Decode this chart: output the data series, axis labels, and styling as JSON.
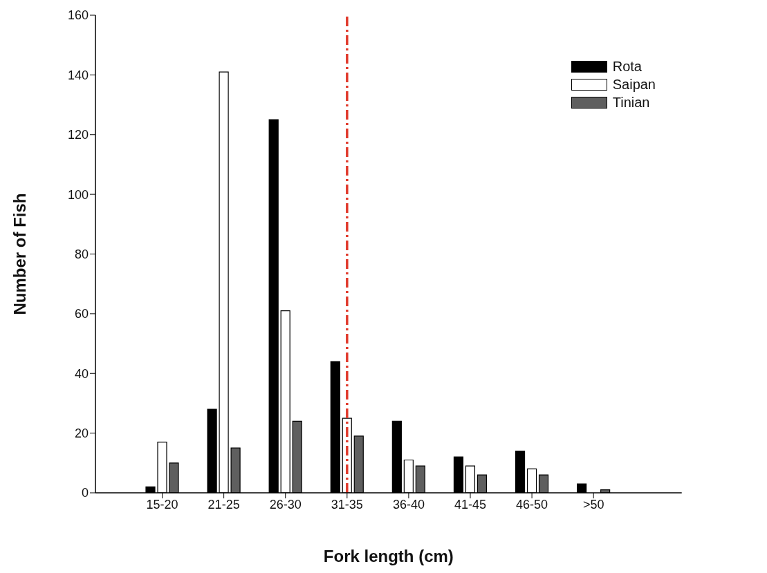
{
  "chart_data": {
    "type": "bar",
    "xlabel": "Fork length (cm)",
    "ylabel": "Number of Fish",
    "categories": [
      "15-20",
      "21-25",
      "26-30",
      "31-35",
      "36-40",
      "41-45",
      "46-50",
      ">50"
    ],
    "series": [
      {
        "name": "Rota",
        "color": "#000000",
        "values": [
          2,
          28,
          125,
          44,
          24,
          12,
          14,
          3
        ]
      },
      {
        "name": "Saipan",
        "color": "#ffffff",
        "values": [
          17,
          141,
          61,
          25,
          11,
          9,
          8,
          0
        ]
      },
      {
        "name": "Tinian",
        "color": "#5f5f5f",
        "values": [
          10,
          15,
          24,
          19,
          9,
          6,
          6,
          1
        ]
      }
    ],
    "ylim": [
      0,
      160
    ],
    "yticks": [
      0,
      20,
      40,
      60,
      80,
      100,
      120,
      140,
      160
    ],
    "grid": false,
    "legend": "top right",
    "ref_lines": [
      {
        "axis": "x",
        "value": "31-35",
        "color": "#e0392b",
        "line_style": "dashdot"
      }
    ]
  }
}
